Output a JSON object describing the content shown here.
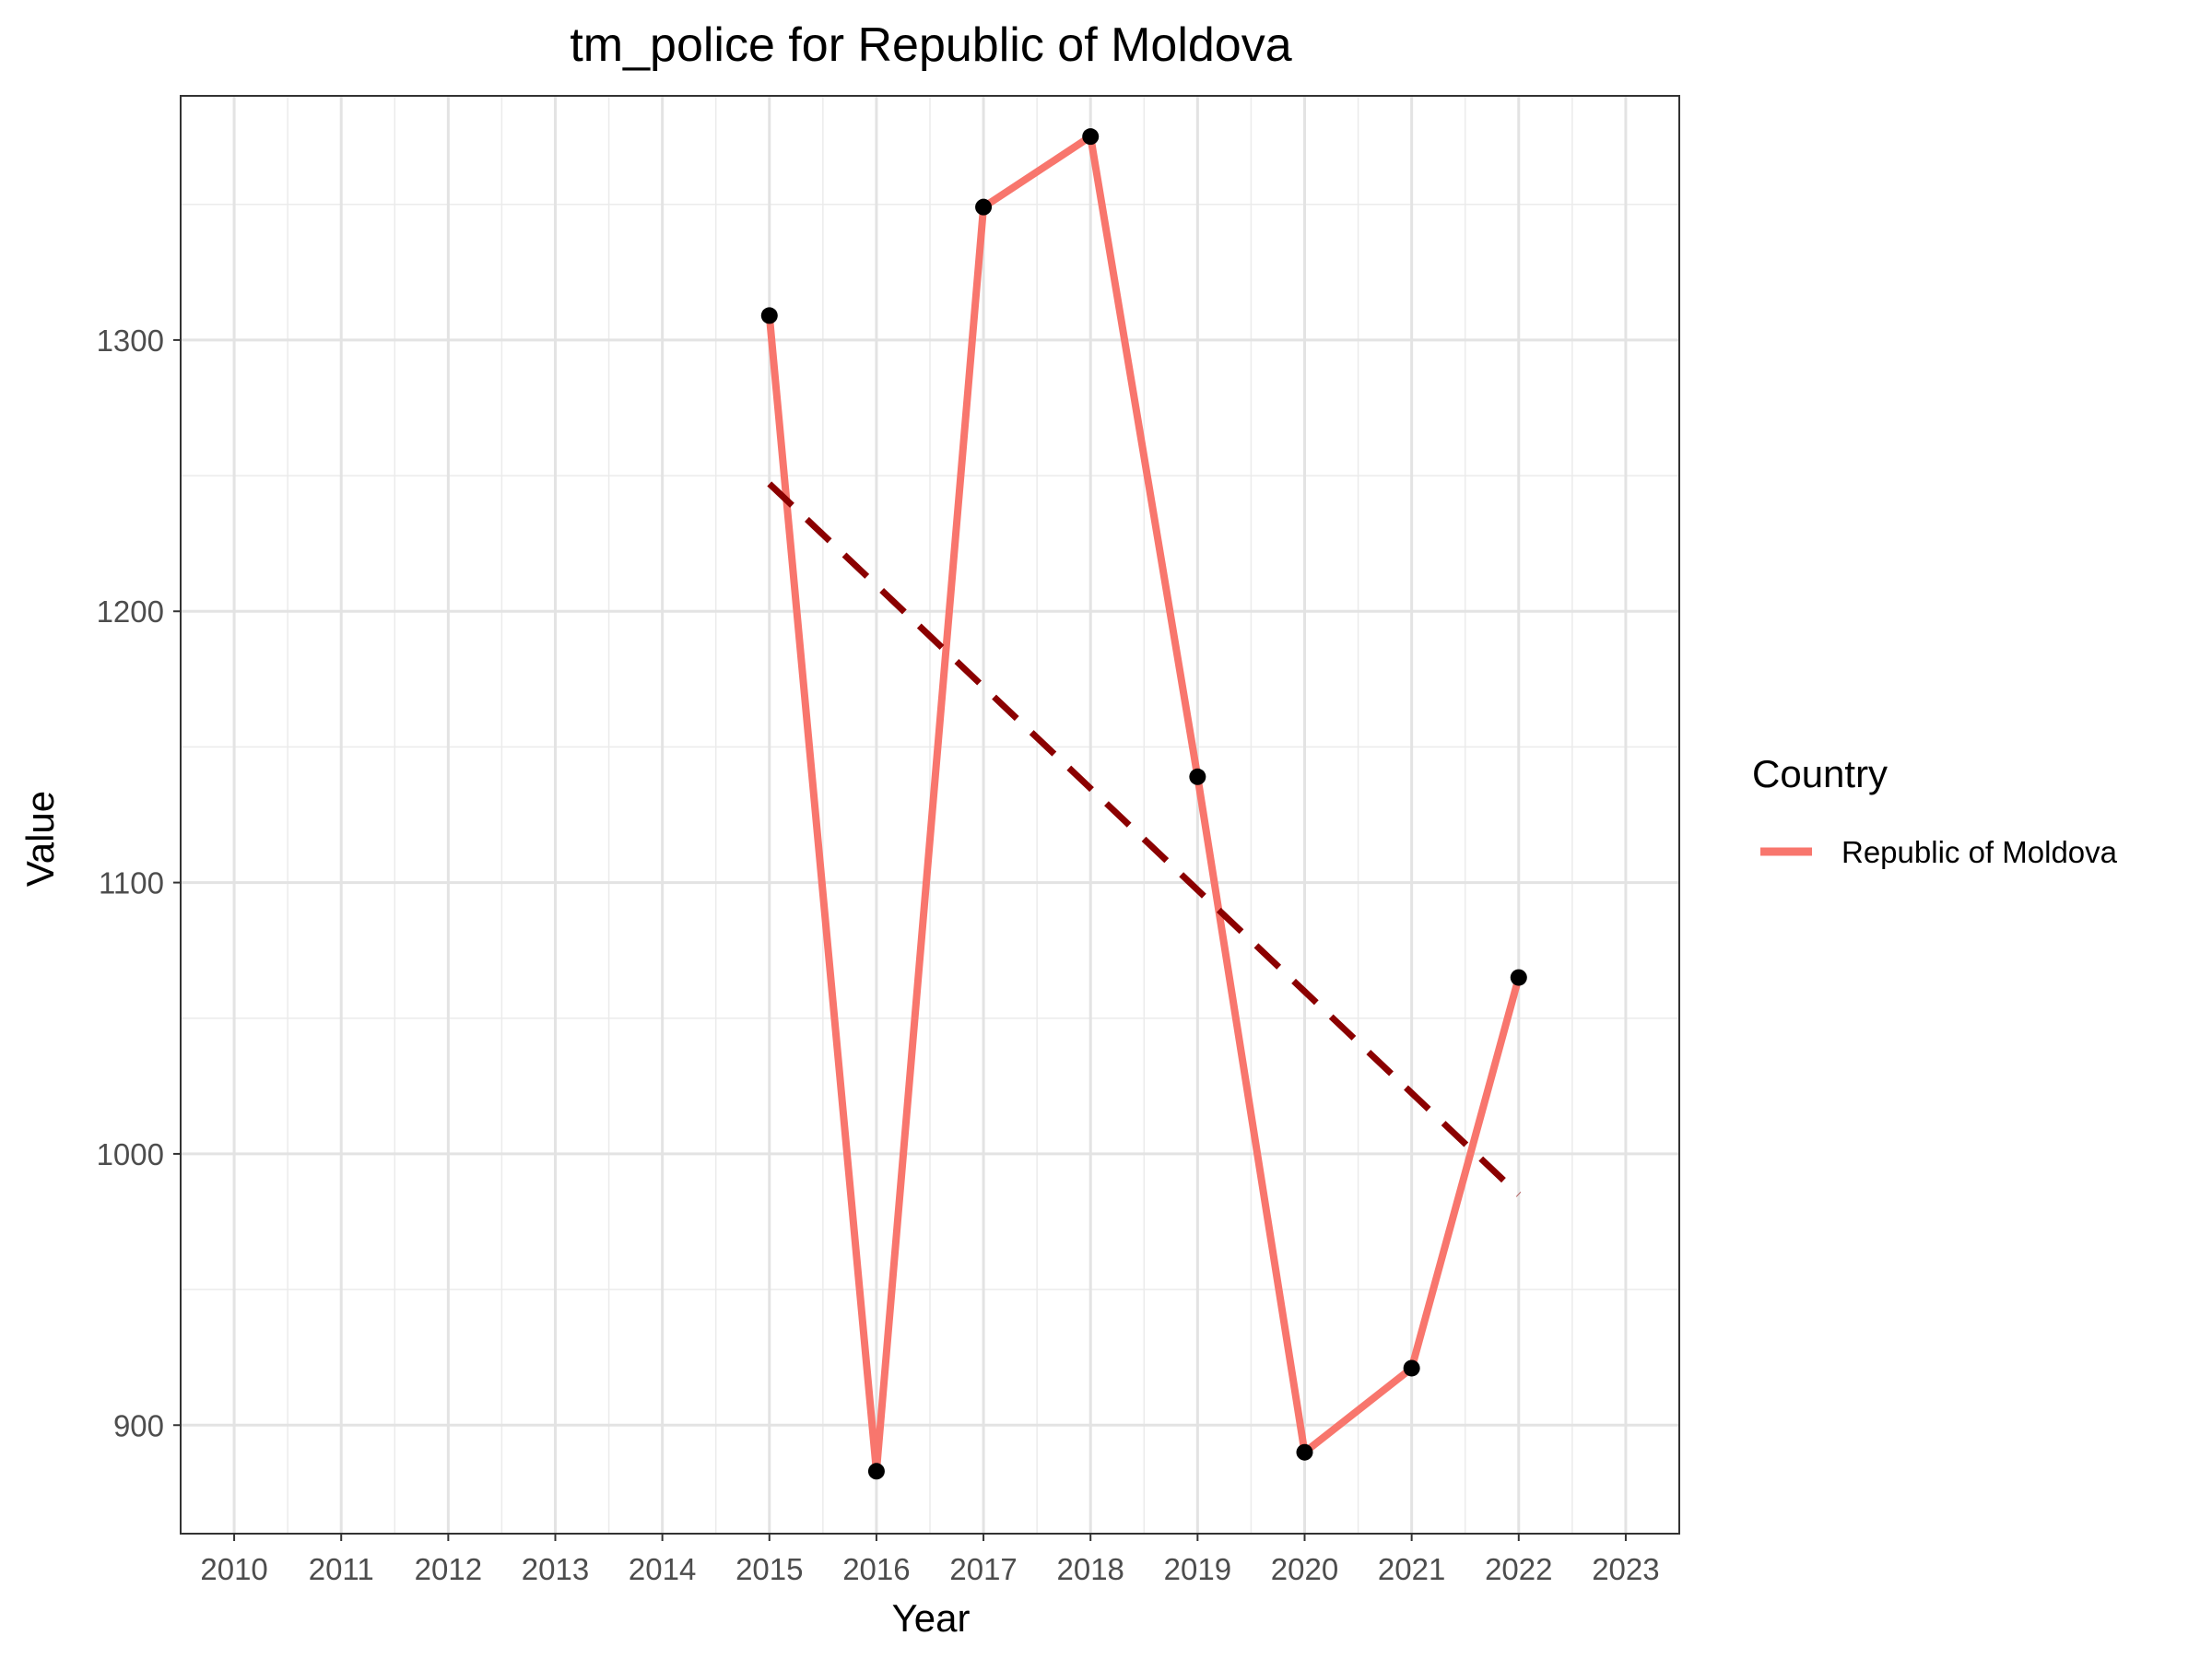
{
  "chart_data": {
    "type": "line",
    "title": "tm_police for Republic of Moldova",
    "xlabel": "Year",
    "ylabel": "Value",
    "x_ticks": [
      "2010",
      "2011",
      "2012",
      "2013",
      "2014",
      "2015",
      "2016",
      "2017",
      "2018",
      "2019",
      "2020",
      "2021",
      "2022",
      "2023"
    ],
    "y_ticks": [
      "900",
      "1000",
      "1100",
      "1200",
      "1300"
    ],
    "xlim": [
      2009.5,
      2023.5
    ],
    "ylim": [
      860,
      1390
    ],
    "grid": true,
    "legend": {
      "title": "Country",
      "position": "right"
    },
    "series": [
      {
        "name": "Republic of Moldova",
        "color": "#F8766D",
        "x": [
          2015,
          2016,
          2017,
          2018,
          2019,
          2020,
          2021,
          2022
        ],
        "y": [
          1309,
          883,
          1349,
          1375,
          1139,
          890,
          921,
          1065
        ]
      }
    ],
    "trend_line": {
      "style": "dashed",
      "color": "#8B0000",
      "x": [
        2015,
        2022
      ],
      "y": [
        1247,
        985
      ]
    },
    "point_color": "#000000"
  }
}
